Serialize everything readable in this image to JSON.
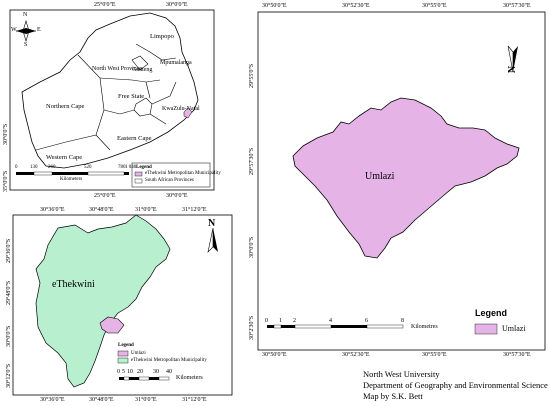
{
  "sa_panel": {
    "lon_ticks": [
      "25°0'0\"E",
      "30°0'0\"E"
    ],
    "bottom_lon_ticks": [
      "25°0'0\"E",
      "30°0'0\"E"
    ],
    "lat_ticks_left": [
      "30°0'0\"S",
      "35°0'0\"S"
    ],
    "provinces": [
      "Limpopo",
      "Mpumalanga",
      "Gauteng",
      "North West Province",
      "Free State",
      "KwaZulu-Natal",
      "Northern Cape",
      "Eastern Cape",
      "Western Cape"
    ],
    "compass": {
      "n": "N",
      "s": "S",
      "w": "W",
      "e": "E"
    },
    "scale": {
      "ticks": [
        "0",
        "130",
        "260",
        "520",
        "780",
        "1 040"
      ],
      "unit": "Kilometers"
    },
    "legend": {
      "title": "Legend",
      "items": [
        "eThekwini Metropolitan Municipality",
        "South African Provinces"
      ]
    },
    "colors": {
      "fill": "#ffffff",
      "municipality": "#e5b3e5"
    }
  },
  "ethekwini_panel": {
    "lon_ticks": [
      "30°36'0\"E",
      "30°48'0\"E",
      "31°0'0\"E",
      "31°12'0\"E"
    ],
    "bottom_lon_ticks": [
      "30°36'0\"E",
      "30°48'0\"E",
      "31°0'0\"E",
      "31°12'0\"E"
    ],
    "lat_ticks": [
      "29°36'0\"S",
      "29°48'0\"S",
      "30°0'0\"S",
      "30°12'0\"S"
    ],
    "label": "eThekwini",
    "north": "N",
    "scale": {
      "ticks": [
        "0",
        "5",
        "10",
        "20",
        "30",
        "40"
      ],
      "unit": "Kilometers"
    },
    "legend": {
      "title": "Legend",
      "items": [
        "Umlazi",
        "eThekwini Metropolitan Municipality"
      ]
    },
    "colors": {
      "ethekwini": "#b7efcf",
      "umlazi": "#e5b3e5"
    }
  },
  "umlazi_panel": {
    "top_lon_ticks": [
      "30°50'0\"E",
      "30°52'30\"E",
      "30°55'0\"E",
      "30°57'30\"E"
    ],
    "bottom_lon_ticks": [
      "30°50'0\"E",
      "30°52'30\"E",
      "30°55'0\"E",
      "30°57'30\"E"
    ],
    "lat_ticks": [
      "29°55'0\"S",
      "29°57'30\"S",
      "30°0'0\"S",
      "30°2'30\"S"
    ],
    "label": "Umlazi",
    "north": "N",
    "scale": {
      "ticks": [
        "0",
        "1",
        "2",
        "4",
        "6",
        "8"
      ],
      "unit": "Kilometres"
    },
    "legend": {
      "title": "Legend",
      "items": [
        "Umlazi"
      ]
    },
    "colors": {
      "umlazi": "#e5b3e5"
    }
  },
  "credits": {
    "line1": "North West University",
    "line2": "Department of Geography and Environmental Science",
    "line3": "Map by S.K. Bett"
  }
}
